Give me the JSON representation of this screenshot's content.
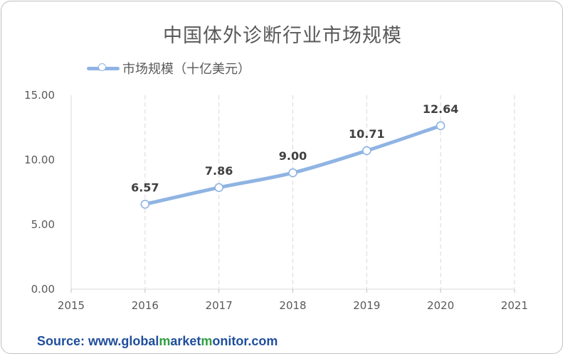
{
  "chart_data": {
    "type": "line",
    "title": "中国体外诊断行业市场规模",
    "x_categories": [
      "2015",
      "2016",
      "2017",
      "2018",
      "2019",
      "2020",
      "2021"
    ],
    "series": [
      {
        "name": "市场规模（十亿美元）",
        "x": [
          "2016",
          "2017",
          "2018",
          "2019",
          "2020"
        ],
        "values": [
          6.57,
          7.86,
          9.0,
          10.71,
          12.64
        ],
        "labels": [
          "6.57",
          "7.86",
          "9.00",
          "10.71",
          "12.64"
        ]
      }
    ],
    "y_ticks": [
      "0.00",
      "5.00",
      "10.00",
      "15.00"
    ],
    "ylim": [
      0,
      15
    ],
    "grid": "vertical dashed",
    "legend_position": "top-left",
    "line_color": "#8fb4e3"
  },
  "source": {
    "prefix": "Source: www.",
    "parts": [
      {
        "text": "global",
        "color": "#1f4e9c"
      },
      {
        "text": "m",
        "color": "#2e9e3e"
      },
      {
        "text": "arket",
        "color": "#1f4e9c"
      },
      {
        "text": "m",
        "color": "#2e9e3e"
      },
      {
        "text": "onitor",
        "color": "#1f4e9c"
      }
    ],
    "suffix": ".com",
    "color": "#1f4e9c"
  }
}
